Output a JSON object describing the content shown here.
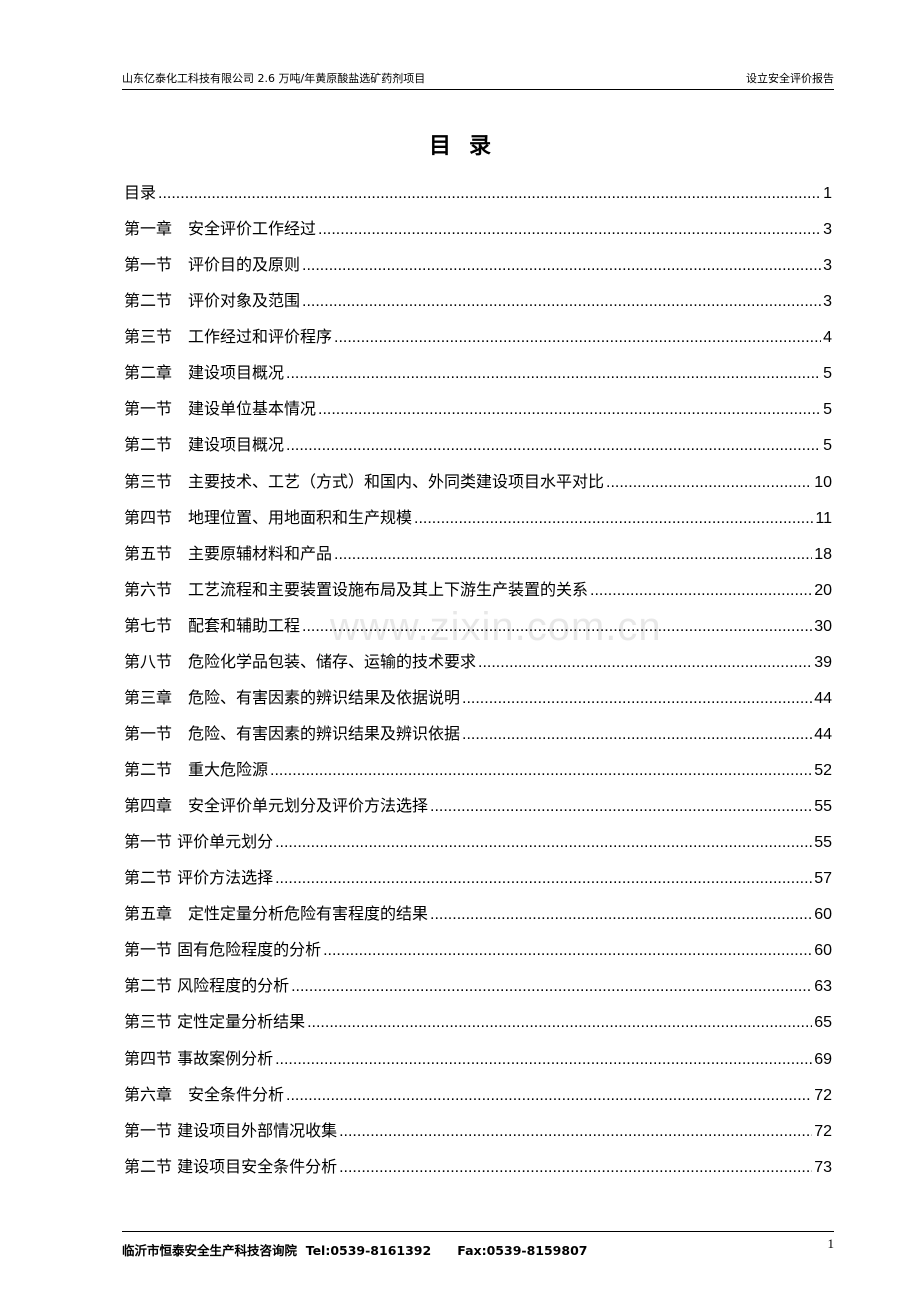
{
  "header": {
    "left": "山东亿泰化工科技有限公司 2.6 万吨/年黄原酸盐选矿药剂项目",
    "right": "设立安全评价报告"
  },
  "title": "目录",
  "toc": [
    {
      "text": "目录",
      "page": "1"
    },
    {
      "text": "第一章　安全评价工作经过",
      "page": "3"
    },
    {
      "text": "第一节　评价目的及原则",
      "page": "3"
    },
    {
      "text": "第二节　评价对象及范围",
      "page": "3"
    },
    {
      "text": "第三节　工作经过和评价程序",
      "page": "4"
    },
    {
      "text": "第二章　建设项目概况",
      "page": "5"
    },
    {
      "text": "第一节　建设单位基本情况",
      "page": "5"
    },
    {
      "text": "第二节　建设项目概况",
      "page": "5"
    },
    {
      "text": "第三节　主要技术、工艺（方式）和国内、外同类建设项目水平对比",
      "page": "10"
    },
    {
      "text": "第四节　地理位置、用地面积和生产规模",
      "page": "11"
    },
    {
      "text": "第五节　主要原辅材料和产品",
      "page": "18"
    },
    {
      "text": "第六节　工艺流程和主要装置设施布局及其上下游生产装置的关系",
      "page": "20"
    },
    {
      "text": "第七节　配套和辅助工程",
      "page": "30"
    },
    {
      "text": "第八节　危险化学品包装、储存、运输的技术要求",
      "page": "39"
    },
    {
      "text": "第三章　危险、有害因素的辨识结果及依据说明",
      "page": "44"
    },
    {
      "text": "第一节　危险、有害因素的辨识结果及辨识依据",
      "page": "44"
    },
    {
      "text": "第二节　重大危险源",
      "page": "52"
    },
    {
      "text": "第四章　安全评价单元划分及评价方法选择",
      "page": "55"
    },
    {
      "text": "第一节 评价单元划分",
      "page": "55"
    },
    {
      "text": "第二节 评价方法选择",
      "page": "57"
    },
    {
      "text": "第五章　定性定量分析危险有害程度的结果",
      "page": "60"
    },
    {
      "text": "第一节 固有危险程度的分析",
      "page": "60"
    },
    {
      "text": "第二节 风险程度的分析",
      "page": "63"
    },
    {
      "text": "第三节 定性定量分析结果",
      "page": "65"
    },
    {
      "text": "第四节 事故案例分析",
      "page": "69"
    },
    {
      "text": "第六章　安全条件分析",
      "page": "72"
    },
    {
      "text": "第一节 建设项目外部情况收集",
      "page": "72"
    },
    {
      "text": "第二节 建设项目安全条件分析",
      "page": "73"
    }
  ],
  "watermark": "www.zixin.com.cn",
  "footer": {
    "text": "临沂市恒泰安全生产科技咨询院  Tel:0539-8161392      Fax:0539-8159807",
    "page_number": "1"
  }
}
